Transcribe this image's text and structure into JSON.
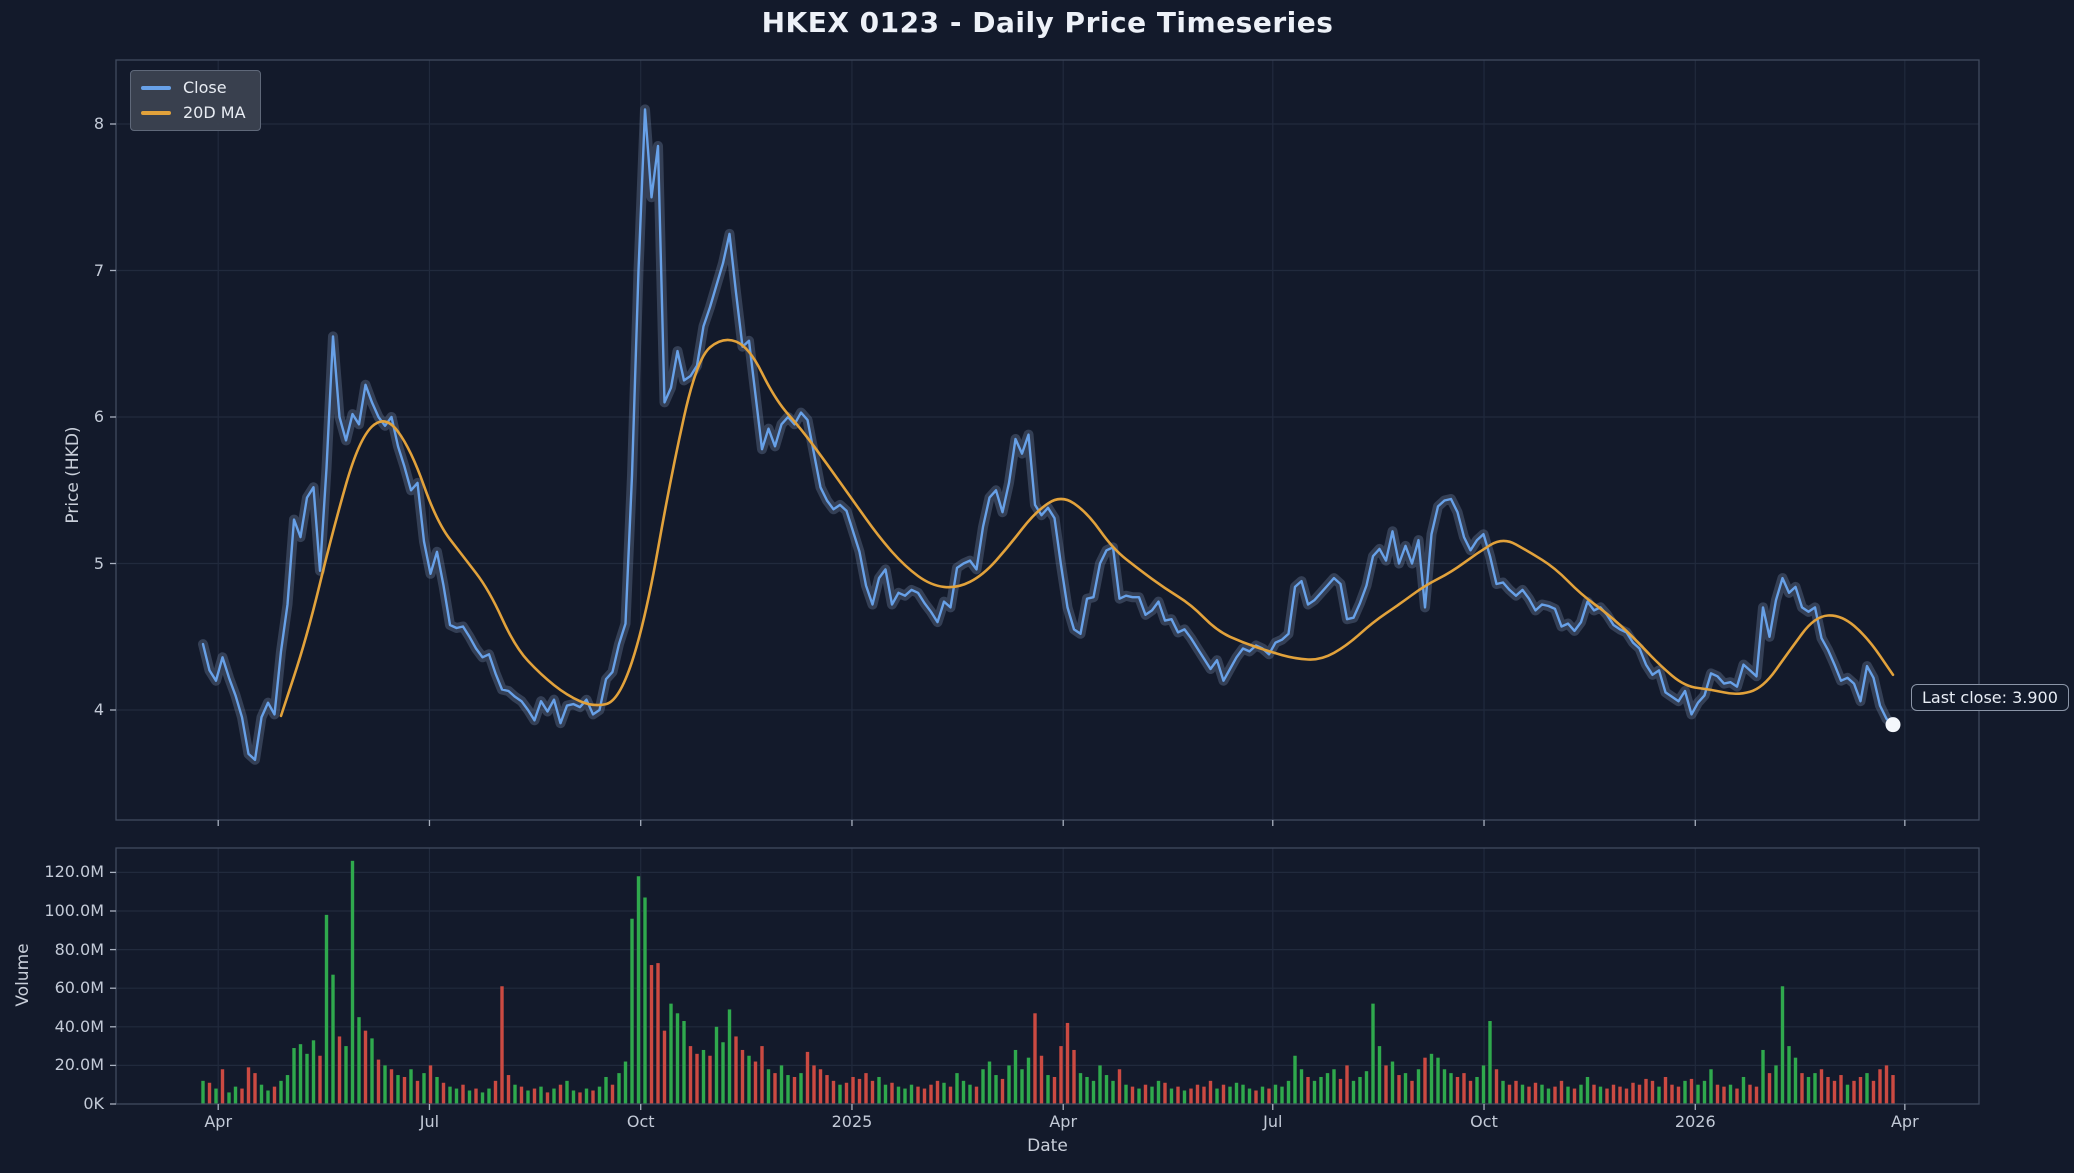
{
  "chart_data": {
    "title": "HKEX 0123 - Daily Price Timeseries",
    "x_axis": {
      "label": "Date",
      "tick_labels": [
        "Apr",
        "Jul",
        "Oct",
        "2025",
        "Apr",
        "Jul",
        "Oct",
        "2026",
        "Apr"
      ],
      "tick_positions": [
        0.009,
        0.134,
        0.259,
        0.384,
        0.509,
        0.633,
        0.758,
        0.883,
        1.007
      ]
    },
    "price_panel": {
      "type": "line",
      "ylabel": "Price (HKD)",
      "ylim": [
        3.25,
        8.44
      ],
      "yticks": [
        4,
        5,
        6,
        7,
        8
      ],
      "annotation": {
        "text": "Last close: 3.900",
        "value": 3.9
      },
      "series": [
        {
          "name": "Close",
          "values": [
            4.45,
            4.27,
            4.2,
            4.36,
            4.22,
            4.1,
            3.95,
            3.7,
            3.66,
            3.95,
            4.05,
            3.97,
            4.4,
            4.72,
            5.3,
            5.18,
            5.45,
            5.52,
            4.95,
            5.65,
            6.55,
            6.0,
            5.84,
            6.02,
            5.95,
            6.22,
            6.1,
            6.0,
            5.94,
            6.0,
            5.8,
            5.66,
            5.5,
            5.55,
            5.15,
            4.93,
            5.08,
            4.85,
            4.58,
            4.56,
            4.57,
            4.5,
            4.42,
            4.36,
            4.38,
            4.25,
            4.14,
            4.13,
            4.09,
            4.06,
            4.0,
            3.93,
            4.06,
            3.99,
            4.07,
            3.91,
            4.03,
            4.04,
            4.02,
            4.07,
            3.97,
            4.0,
            4.21,
            4.26,
            4.45,
            4.59,
            5.6,
            7.0,
            8.1,
            7.5,
            7.85,
            6.1,
            6.2,
            6.45,
            6.25,
            6.28,
            6.35,
            6.62,
            6.75,
            6.9,
            7.05,
            7.25,
            6.85,
            6.48,
            6.52,
            6.15,
            5.78,
            5.92,
            5.8,
            5.95,
            6.0,
            5.95,
            6.03,
            5.98,
            5.75,
            5.52,
            5.43,
            5.37,
            5.4,
            5.36,
            5.22,
            5.08,
            4.85,
            4.72,
            4.9,
            4.96,
            4.72,
            4.8,
            4.78,
            4.82,
            4.8,
            4.73,
            4.67,
            4.6,
            4.74,
            4.7,
            4.97,
            5.0,
            5.02,
            4.96,
            5.25,
            5.45,
            5.5,
            5.35,
            5.55,
            5.85,
            5.75,
            5.88,
            5.4,
            5.33,
            5.38,
            5.31,
            4.99,
            4.7,
            4.55,
            4.52,
            4.76,
            4.77,
            5.0,
            5.09,
            5.11,
            4.76,
            4.78,
            4.77,
            4.77,
            4.65,
            4.68,
            4.74,
            4.61,
            4.62,
            4.53,
            4.55,
            4.49,
            4.42,
            4.35,
            4.28,
            4.34,
            4.2,
            4.28,
            4.36,
            4.42,
            4.4,
            4.44,
            4.42,
            4.38,
            4.46,
            4.48,
            4.52,
            4.84,
            4.88,
            4.72,
            4.75,
            4.8,
            4.85,
            4.9,
            4.86,
            4.62,
            4.63,
            4.73,
            4.85,
            5.05,
            5.1,
            5.02,
            5.22,
            5.0,
            5.12,
            5.0,
            5.16,
            4.7,
            5.2,
            5.39,
            5.43,
            5.44,
            5.35,
            5.18,
            5.09,
            5.16,
            5.2,
            5.05,
            4.86,
            4.87,
            4.82,
            4.78,
            4.82,
            4.76,
            4.68,
            4.72,
            4.71,
            4.69,
            4.57,
            4.59,
            4.54,
            4.6,
            4.74,
            4.68,
            4.7,
            4.65,
            4.58,
            4.55,
            4.53,
            4.46,
            4.42,
            4.31,
            4.24,
            4.27,
            4.12,
            4.09,
            4.06,
            4.13,
            3.97,
            4.05,
            4.1,
            4.25,
            4.23,
            4.18,
            4.19,
            4.16,
            4.31,
            4.27,
            4.23,
            4.7,
            4.5,
            4.75,
            4.9,
            4.8,
            4.84,
            4.7,
            4.67,
            4.7,
            4.49,
            4.41,
            4.31,
            4.2,
            4.22,
            4.18,
            4.06,
            4.3,
            4.22,
            4.03,
            3.94,
            3.9
          ]
        },
        {
          "name": "20D MA",
          "values": [
            null,
            null,
            null,
            3.96,
            4.5,
            5.23,
            5.85,
            6.02,
            5.78,
            5.28,
            5.05,
            4.82,
            4.43,
            4.24,
            4.1,
            4.02,
            4.06,
            4.6,
            5.6,
            6.4,
            6.55,
            6.48,
            6.12,
            5.92,
            5.68,
            5.43,
            5.18,
            4.98,
            4.85,
            4.83,
            4.92,
            5.12,
            5.35,
            5.47,
            5.35,
            5.1,
            4.96,
            4.83,
            4.72,
            4.54,
            4.46,
            4.4,
            4.35,
            4.34,
            4.44,
            4.6,
            4.72,
            4.85,
            4.94,
            5.07,
            5.18,
            5.08,
            4.97,
            4.79,
            4.66,
            4.5,
            4.31,
            4.16,
            4.14,
            4.1,
            4.15,
            4.4,
            4.64,
            4.65,
            4.5,
            4.24
          ]
        }
      ]
    },
    "volume_panel": {
      "type": "bar",
      "ylabel": "Volume",
      "unit": "millions of shares",
      "ytick_values": [
        0,
        20,
        40,
        60,
        80,
        100,
        120
      ],
      "ytick_labels": [
        "0K",
        "20.0M",
        "40.0M",
        "60.0M",
        "80.0M",
        "100.0M",
        "120.0M"
      ],
      "color_encoding": {
        "positive": "up day (green bar)",
        "negative": "down day (red bar)"
      },
      "values": [
        12,
        -11,
        8,
        -18,
        6,
        9,
        -8,
        -19,
        -16,
        10,
        7,
        -9,
        12,
        15,
        29,
        31,
        26,
        33,
        -25,
        98,
        67,
        -35,
        30,
        126,
        45,
        -38,
        34,
        -23,
        20,
        -18,
        15,
        -14,
        18,
        -12,
        16,
        -20,
        14,
        -11,
        9,
        8,
        -10,
        7,
        -8,
        6,
        8,
        -12,
        -61,
        -15,
        10,
        -9,
        7,
        -8,
        9,
        -6,
        8,
        -10,
        12,
        7,
        -6,
        8,
        -7,
        9,
        14,
        -10,
        16,
        22,
        96,
        118,
        107,
        -72,
        -73,
        -38,
        52,
        47,
        43,
        -30,
        -26,
        28,
        -25,
        40,
        32,
        49,
        -35,
        -28,
        25,
        -22,
        -30,
        18,
        -16,
        20,
        15,
        -14,
        16,
        -27,
        -20,
        -18,
        -15,
        -12,
        10,
        -11,
        -14,
        -13,
        -16,
        -12,
        14,
        10,
        -11,
        9,
        8,
        10,
        -9,
        -8,
        -10,
        -12,
        11,
        -9,
        16,
        12,
        10,
        -9,
        18,
        22,
        15,
        -13,
        20,
        28,
        18,
        24,
        -47,
        -25,
        15,
        -14,
        -30,
        -42,
        -28,
        16,
        14,
        12,
        20,
        15,
        12,
        -18,
        10,
        -9,
        8,
        -10,
        9,
        12,
        -11,
        8,
        -9,
        7,
        -8,
        -10,
        -9,
        -12,
        8,
        -10,
        9,
        11,
        10,
        8,
        -7,
        9,
        -8,
        10,
        9,
        12,
        25,
        18,
        -14,
        12,
        14,
        16,
        18,
        -13,
        -20,
        12,
        14,
        17,
        52,
        30,
        -20,
        22,
        -15,
        16,
        -12,
        18,
        -24,
        26,
        24,
        18,
        16,
        -14,
        -16,
        -12,
        14,
        20,
        43,
        -18,
        12,
        -10,
        -12,
        10,
        -9,
        -11,
        10,
        8,
        -9,
        -12,
        9,
        -8,
        10,
        14,
        -10,
        9,
        -8,
        -10,
        -9,
        -8,
        -11,
        -10,
        -13,
        -12,
        9,
        -14,
        -10,
        -9,
        12,
        -13,
        10,
        12,
        18,
        -10,
        -9,
        10,
        -8,
        14,
        -10,
        -9,
        28,
        -16,
        20,
        61,
        30,
        24,
        -16,
        14,
        16,
        -18,
        -14,
        -12,
        -15,
        10,
        -12,
        -14,
        16,
        -12,
        -18,
        -20,
        -15
      ]
    }
  },
  "colors": {
    "background": "#131a2b",
    "plot_border": "#404a5e",
    "grid": "#212a3d",
    "close_line": "#68a1e8",
    "band": "#8ca0c3",
    "ma_line": "#e2a23b",
    "volume_up": "#2fa94d",
    "volume_down": "#cb4a42",
    "marker": "#f4f7fc",
    "tick_text": "#c3cad7"
  }
}
